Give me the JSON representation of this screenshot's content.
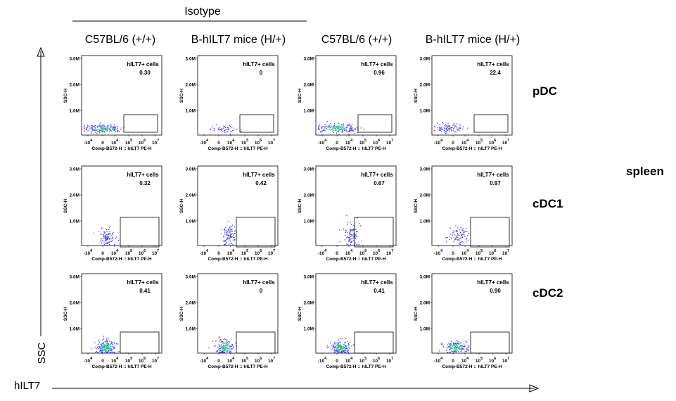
{
  "figure": {
    "isotype_label": "Isotype",
    "column_headers": [
      "C57BL/6 (+/+)",
      "B-hILT7 mice (H/+)",
      "C57BL/6 (+/+)",
      "B-hILT7 mice (H/+)"
    ],
    "row_labels": [
      "pDC",
      "cDC1",
      "cDC2"
    ],
    "tissue_label": "spleen",
    "y_axis_label": "SSC",
    "x_axis_label": "hILT7"
  },
  "chart_data": {
    "type": "scatter",
    "panel_y_label": "SSC-H",
    "panel_x_label": "Comp-B572-H :: hILT7 PE-H",
    "y_ticks": [
      "3.0M",
      "2.0M",
      "1.0M"
    ],
    "x_ticks": [
      "-10^4",
      "0",
      "10^4",
      "10^5",
      "10^6",
      "10^7"
    ],
    "x_tick_display": [
      {
        "base": "-10",
        "exp": "4"
      },
      {
        "base": "0",
        "exp": ""
      },
      {
        "base": "10",
        "exp": "4"
      },
      {
        "base": "10",
        "exp": "5"
      },
      {
        "base": "10",
        "exp": "6"
      },
      {
        "base": "10",
        "exp": "7"
      }
    ],
    "gate_label": "hILT7+ cells",
    "gate_values": [
      [
        "0.30",
        "0",
        "0.96",
        "22.4"
      ],
      [
        "0.32",
        "0.42",
        "0.67",
        "0.97"
      ],
      [
        "0.41",
        "0",
        "0.41",
        "0.90"
      ]
    ]
  },
  "colors": {
    "dots_low": "#3a3aff",
    "dots_mid": "#22c3c8",
    "dots_high": "#2db84a",
    "frame": "#000000"
  }
}
